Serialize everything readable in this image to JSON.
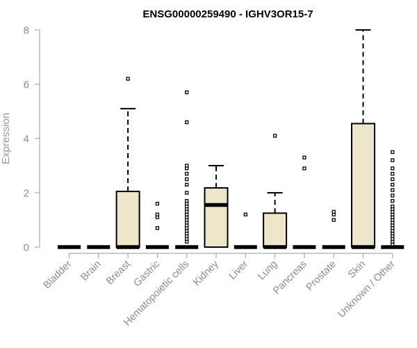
{
  "chart_data": {
    "type": "boxplot",
    "title": "ENSG00000259490 - IGHV3OR15-7",
    "xlabel": "",
    "ylabel": "Expression",
    "ylim": [
      0,
      8.2
    ],
    "yticks": [
      0,
      2,
      4,
      6,
      8
    ],
    "grid": false,
    "legend": "none",
    "box_fill": "#ede6cb",
    "box_stroke": "#000000",
    "axis_color": "#9a9a9a",
    "categories": [
      "Bladder",
      "Brain",
      "Breast",
      "Gastric",
      "Hematopoietic cells",
      "Kidney",
      "Liver",
      "Lung",
      "Pancreas",
      "Prostate",
      "Skin",
      "Unknown / Other"
    ],
    "boxes": [
      {
        "category": "Bladder",
        "min": 0,
        "q1": 0,
        "median": 0,
        "q3": 0,
        "max": 0,
        "outliers": []
      },
      {
        "category": "Brain",
        "min": 0,
        "q1": 0,
        "median": 0,
        "q3": 0,
        "max": 0,
        "outliers": []
      },
      {
        "category": "Breast",
        "min": 0,
        "q1": 0,
        "median": 0,
        "q3": 2.05,
        "max": 5.1,
        "outliers": [
          6.2
        ]
      },
      {
        "category": "Gastric",
        "min": 0,
        "q1": 0,
        "median": 0,
        "q3": 0,
        "max": 0,
        "outliers": [
          0.7,
          1.1,
          1.2,
          1.6
        ]
      },
      {
        "category": "Hematopoietic cells",
        "min": 0,
        "q1": 0,
        "median": 0,
        "q3": 0,
        "max": 0,
        "outliers": [
          0.2,
          0.3,
          0.4,
          0.5,
          0.6,
          0.7,
          0.8,
          0.9,
          1.0,
          1.1,
          1.2,
          1.3,
          1.4,
          1.5,
          1.6,
          1.7,
          2.0,
          2.3,
          2.5,
          2.7,
          2.9,
          3.0,
          4.6,
          5.7
        ]
      },
      {
        "category": "Kidney",
        "min": 0,
        "q1": 0,
        "median": 1.55,
        "q3": 2.18,
        "max": 3.0,
        "outliers": []
      },
      {
        "category": "Liver",
        "min": 0,
        "q1": 0,
        "median": 0,
        "q3": 0,
        "max": 0,
        "outliers": [
          1.2
        ]
      },
      {
        "category": "Lung",
        "min": 0,
        "q1": 0,
        "median": 0,
        "q3": 1.25,
        "max": 2.0,
        "outliers": [
          4.1
        ]
      },
      {
        "category": "Pancreas",
        "min": 0,
        "q1": 0,
        "median": 0,
        "q3": 0,
        "max": 0,
        "outliers": [
          2.9,
          3.3
        ]
      },
      {
        "category": "Prostate",
        "min": 0,
        "q1": 0,
        "median": 0,
        "q3": 0,
        "max": 0,
        "outliers": [
          1.0,
          1.2,
          1.3
        ]
      },
      {
        "category": "Skin",
        "min": 0,
        "q1": 0,
        "median": 0,
        "q3": 4.55,
        "max": 8.0,
        "outliers": []
      },
      {
        "category": "Unknown / Other",
        "min": 0,
        "q1": 0,
        "median": 0,
        "q3": 0,
        "max": 0,
        "outliers": [
          0.1,
          0.2,
          0.3,
          0.4,
          0.5,
          0.6,
          0.7,
          0.8,
          0.9,
          1.0,
          1.1,
          1.2,
          1.3,
          1.4,
          1.5,
          1.7,
          1.9,
          2.1,
          2.3,
          2.5,
          2.7,
          2.9,
          3.2,
          3.5
        ]
      }
    ]
  }
}
